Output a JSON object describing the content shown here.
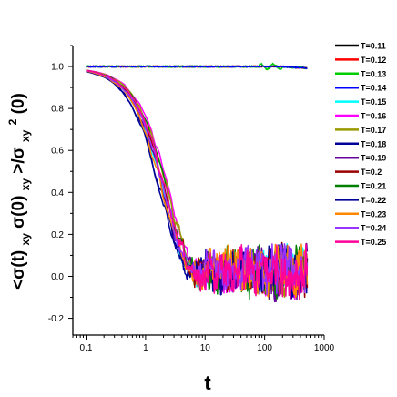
{
  "chart_data": {
    "type": "line",
    "title": "",
    "xlabel": "t",
    "ylabel": "<σ(t)xyσ(0)xy>/σxy2(0)",
    "ylabel_parts": {
      "a": "<σ(t)",
      "b": "xy",
      "c": "σ(0)",
      "d": "xy",
      "e": ">/σ",
      "f": "xy",
      "g": "2",
      "h": "(0)"
    },
    "x_scale": "log",
    "xlim": [
      0.06,
      1000
    ],
    "ylim": [
      -0.28,
      1.1
    ],
    "x_ticks": [
      "0.1",
      "1",
      "10",
      "100",
      "1000"
    ],
    "y_ticks": [
      "-0.2",
      "0.0",
      "0.2",
      "0.4",
      "0.6",
      "0.8",
      "1.0"
    ],
    "grid": false,
    "legend_position": "right",
    "series": [
      {
        "name": "T=0.11",
        "color": "#000000",
        "style": "flat",
        "tau": 0,
        "noise": 0.006
      },
      {
        "name": "T=0.12",
        "color": "#ff0000",
        "style": "flat",
        "tau": 0,
        "noise": 0.006
      },
      {
        "name": "T=0.13",
        "color": "#00cc00",
        "style": "flat",
        "tau": 0,
        "noise": 0.008
      },
      {
        "name": "T=0.14",
        "color": "#0000ff",
        "style": "flat",
        "tau": 0,
        "noise": 0.006
      },
      {
        "name": "T=0.15",
        "color": "#00ffff",
        "style": "decay",
        "tau": 2.05,
        "noise": 0.05
      },
      {
        "name": "T=0.16",
        "color": "#ff00ff",
        "style": "decay",
        "tau": 2.6,
        "noise": 0.05
      },
      {
        "name": "T=0.17",
        "color": "#999900",
        "style": "decay",
        "tau": 2.45,
        "noise": 0.05
      },
      {
        "name": "T=0.18",
        "color": "#000099",
        "style": "decay",
        "tau": 1.9,
        "noise": 0.05
      },
      {
        "name": "T=0.19",
        "color": "#660099",
        "style": "decay",
        "tau": 2.1,
        "noise": 0.05
      },
      {
        "name": "T=0.2",
        "color": "#990000",
        "style": "decay",
        "tau": 2.25,
        "noise": 0.05
      },
      {
        "name": "T=0.21",
        "color": "#008000",
        "style": "decay",
        "tau": 2.35,
        "noise": 0.05
      },
      {
        "name": "T=0.22",
        "color": "#000099",
        "style": "decay",
        "tau": 1.85,
        "noise": 0.05
      },
      {
        "name": "T=0.23",
        "color": "#ff8800",
        "style": "decay",
        "tau": 2.0,
        "noise": 0.05
      },
      {
        "name": "T=0.24",
        "color": "#9933ff",
        "style": "decay",
        "tau": 2.15,
        "noise": 0.05
      },
      {
        "name": "T=0.25",
        "color": "#ff0099",
        "style": "decay",
        "tau": 2.3,
        "noise": 0.05
      }
    ]
  }
}
